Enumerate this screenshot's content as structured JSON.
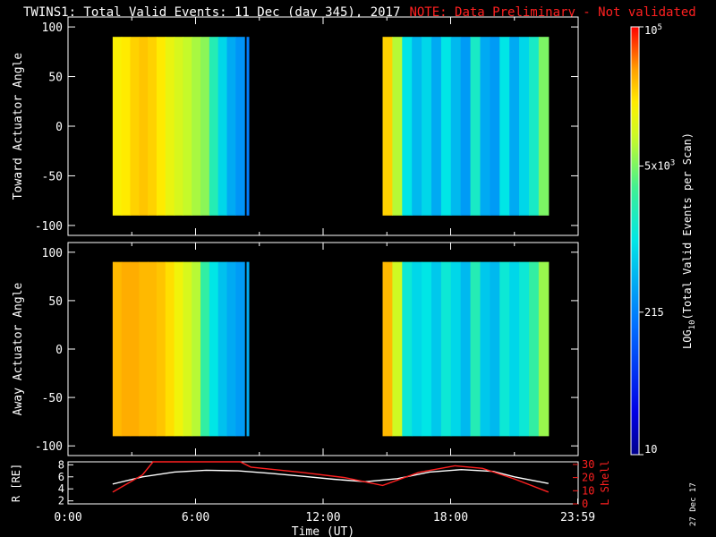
{
  "title": {
    "main": "TWINS1: Total Valid Events: 11 Dec (day 345), 2017",
    "note": "NOTE: Data Preliminary - Not validated",
    "note_color": "#ff2020"
  },
  "date_stamp": "27 Dec 17",
  "chart_data": [
    {
      "type": "heatmap",
      "name": "toward",
      "ylabel": "Toward Actuator Angle",
      "xlim": [
        0,
        24
      ],
      "ylim": [
        -110,
        110
      ],
      "yticks": [
        100,
        50,
        0,
        -50,
        -100
      ],
      "data_angle_range": [
        -90,
        90
      ],
      "segments": [
        {
          "start_hours": 2.1,
          "end_hours": 8.3,
          "log10_values_by_time": [
            4.25,
            4.3,
            4.4,
            4.45,
            4.4,
            4.3,
            4.15,
            4.05,
            3.95,
            3.85,
            3.75,
            3.3,
            2.9,
            2.6,
            2.45
          ]
        },
        {
          "start_hours": 8.4,
          "end_hours": 8.5,
          "log10_values_by_time": [
            2.3
          ]
        },
        {
          "start_hours": 14.8,
          "end_hours": 22.6,
          "log10_values_by_time": [
            4.4,
            3.9,
            3.0,
            2.7,
            2.9,
            2.6,
            3.0,
            2.7,
            2.5,
            3.2,
            2.6,
            2.5,
            3.0,
            2.6,
            2.9,
            3.2,
            3.7
          ]
        }
      ]
    },
    {
      "type": "heatmap",
      "name": "away",
      "ylabel": "Away Actuator Angle",
      "xlim": [
        0,
        24
      ],
      "ylim": [
        -110,
        110
      ],
      "yticks": [
        100,
        50,
        0,
        -50,
        -100
      ],
      "data_angle_range": [
        -90,
        90
      ],
      "segments": [
        {
          "start_hours": 2.1,
          "end_hours": 8.3,
          "log10_values_by_time": [
            4.5,
            4.55,
            4.55,
            4.5,
            4.5,
            4.45,
            4.35,
            4.2,
            4.05,
            3.9,
            3.4,
            3.0,
            2.75,
            2.6,
            2.5
          ]
        },
        {
          "start_hours": 8.4,
          "end_hours": 8.5,
          "log10_values_by_time": [
            2.6
          ]
        },
        {
          "start_hours": 14.8,
          "end_hours": 22.6,
          "log10_values_by_time": [
            4.5,
            4.0,
            3.1,
            2.9,
            3.0,
            2.8,
            3.1,
            2.9,
            2.7,
            3.3,
            2.8,
            2.7,
            3.1,
            2.9,
            3.1,
            3.4,
            3.8
          ]
        }
      ]
    },
    {
      "type": "line",
      "name": "orbit",
      "xlabel": "Time (UT)",
      "xlim": [
        0,
        24
      ],
      "xticks": [
        "0:00",
        "6:00",
        "12:00",
        "18:00",
        "23:59"
      ],
      "xtick_hours": [
        0,
        6,
        12,
        18,
        23.98
      ],
      "left_axis": {
        "label": "R [RE]",
        "range": [
          1.5,
          8.5
        ],
        "ticks": [
          2,
          4,
          6,
          8
        ]
      },
      "right_axis": {
        "label": "L Shell",
        "range": [
          0,
          32
        ],
        "ticks": [
          0,
          10,
          20,
          30
        ],
        "color": "#ff2020"
      },
      "series": [
        {
          "axis": "left",
          "color": "#ffffff",
          "x": [
            2.1,
            3.5,
            5.0,
            6.5,
            8.0,
            9.5,
            11.0,
            12.5,
            14.0,
            15.5,
            17.0,
            18.5,
            20.0,
            21.0,
            22.6
          ],
          "y": [
            4.8,
            6.0,
            6.8,
            7.1,
            7.0,
            6.6,
            6.1,
            5.6,
            5.2,
            5.7,
            6.8,
            7.2,
            6.9,
            6.0,
            4.9
          ]
        },
        {
          "axis": "right",
          "color": "#ff2020",
          "x": [
            2.1,
            3.5,
            4.0,
            8.1,
            8.6,
            11.0,
            13.0,
            14.8,
            16.5,
            18.2,
            19.5,
            21.0,
            22.6
          ],
          "y": [
            9,
            22,
            33,
            33,
            28,
            24,
            20,
            14,
            24,
            29,
            27,
            19,
            9
          ]
        }
      ]
    }
  ],
  "colorbar": {
    "label_prefix": "LOG",
    "label_sub": "10",
    "label_rest": "(Total Valid Events per Scan)",
    "log_range": [
      1.0,
      5.0
    ],
    "ticks": [
      {
        "log": 5.0,
        "base": "10",
        "exp": "5"
      },
      {
        "log": 3.699,
        "base": "5x10",
        "exp": "3"
      },
      {
        "log": 2.3324,
        "base": "215",
        "exp": ""
      },
      {
        "log": 1.0,
        "base": "10",
        "exp": ""
      }
    ]
  }
}
